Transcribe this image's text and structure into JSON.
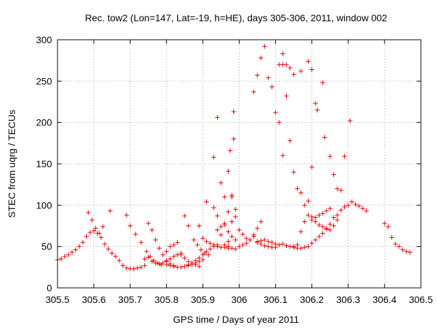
{
  "chart_data": {
    "type": "scatter",
    "title": "Rec. tow2 (Lon=147, Lat=-19, h=HE), days 305-306, 2011, window 002",
    "xlabel": "GPS time / Days of year 2011",
    "ylabel": "STEC from uqrg / TECUs",
    "xlim": [
      305.5,
      306.5
    ],
    "ylim": [
      0,
      300
    ],
    "xticks": [
      "305.5",
      "305.6",
      "305.7",
      "305.8",
      "305.9",
      "306",
      "306.1",
      "306.2",
      "306.3",
      "306.4",
      "306.5"
    ],
    "yticks": [
      "0",
      "50",
      "100",
      "150",
      "200",
      "250",
      "300"
    ],
    "grid": true,
    "marker": "+",
    "color": "#e00000",
    "points": [
      [
        305.5,
        34
      ],
      [
        305.51,
        35
      ],
      [
        305.52,
        38
      ],
      [
        305.53,
        40
      ],
      [
        305.54,
        43
      ],
      [
        305.55,
        46
      ],
      [
        305.56,
        50
      ],
      [
        305.57,
        55
      ],
      [
        305.58,
        62
      ],
      [
        305.59,
        67
      ],
      [
        305.6,
        69
      ],
      [
        305.61,
        66
      ],
      [
        305.62,
        61
      ],
      [
        305.63,
        53
      ],
      [
        305.64,
        47
      ],
      [
        305.65,
        42
      ],
      [
        305.585,
        91
      ],
      [
        305.595,
        82
      ],
      [
        305.605,
        72
      ],
      [
        305.615,
        66
      ],
      [
        305.625,
        74
      ],
      [
        305.645,
        93
      ],
      [
        305.66,
        38
      ],
      [
        305.67,
        33
      ],
      [
        305.68,
        27
      ],
      [
        305.69,
        24
      ],
      [
        305.7,
        23
      ],
      [
        305.71,
        23
      ],
      [
        305.72,
        24
      ],
      [
        305.73,
        25
      ],
      [
        305.74,
        27
      ],
      [
        305.69,
        88
      ],
      [
        305.7,
        75
      ],
      [
        305.715,
        65
      ],
      [
        305.73,
        55
      ],
      [
        305.745,
        44
      ],
      [
        305.755,
        38
      ],
      [
        305.765,
        33
      ],
      [
        305.775,
        30
      ],
      [
        305.785,
        28
      ],
      [
        305.75,
        78
      ],
      [
        305.76,
        70
      ],
      [
        305.77,
        58
      ],
      [
        305.78,
        48
      ],
      [
        305.79,
        40
      ],
      [
        305.8,
        33
      ],
      [
        305.81,
        29
      ],
      [
        305.82,
        27
      ],
      [
        305.74,
        35
      ],
      [
        305.75,
        37
      ],
      [
        305.76,
        32
      ],
      [
        305.77,
        30
      ],
      [
        305.78,
        29
      ],
      [
        305.79,
        30
      ],
      [
        305.8,
        32
      ],
      [
        305.81,
        35
      ],
      [
        305.82,
        38
      ],
      [
        305.83,
        40
      ],
      [
        305.84,
        42
      ],
      [
        305.8,
        44
      ],
      [
        305.81,
        50
      ],
      [
        305.82,
        52
      ],
      [
        305.83,
        55
      ],
      [
        305.84,
        40
      ],
      [
        305.85,
        36
      ],
      [
        305.86,
        32
      ],
      [
        305.87,
        30
      ],
      [
        305.88,
        28
      ],
      [
        305.89,
        26
      ],
      [
        305.8,
        28
      ],
      [
        305.81,
        27
      ],
      [
        305.82,
        26
      ],
      [
        305.83,
        25
      ],
      [
        305.84,
        25
      ],
      [
        305.85,
        26
      ],
      [
        305.86,
        27
      ],
      [
        305.87,
        28
      ],
      [
        305.88,
        30
      ],
      [
        305.89,
        32
      ],
      [
        305.9,
        34
      ],
      [
        305.85,
        87
      ],
      [
        305.86,
        75
      ],
      [
        305.875,
        58
      ],
      [
        305.885,
        52
      ],
      [
        305.895,
        46
      ],
      [
        305.905,
        42
      ],
      [
        305.915,
        40
      ],
      [
        305.86,
        28
      ],
      [
        305.87,
        30
      ],
      [
        305.88,
        33
      ],
      [
        305.89,
        36
      ],
      [
        305.9,
        40
      ],
      [
        305.91,
        44
      ],
      [
        305.92,
        47
      ],
      [
        305.93,
        50
      ],
      [
        305.94,
        52
      ],
      [
        305.89,
        75
      ],
      [
        305.9,
        60
      ],
      [
        305.91,
        56
      ],
      [
        305.92,
        54
      ],
      [
        305.93,
        52
      ],
      [
        305.94,
        50
      ],
      [
        305.95,
        49
      ],
      [
        305.96,
        49
      ],
      [
        305.97,
        48
      ],
      [
        305.91,
        104
      ],
      [
        305.93,
        158
      ],
      [
        305.94,
        206
      ],
      [
        305.95,
        127
      ],
      [
        305.96,
        78
      ],
      [
        305.97,
        68
      ],
      [
        305.98,
        62
      ],
      [
        305.99,
        58
      ],
      [
        305.93,
        97
      ],
      [
        305.94,
        87
      ],
      [
        305.95,
        74
      ],
      [
        305.96,
        76
      ],
      [
        305.97,
        92
      ],
      [
        305.98,
        110
      ],
      [
        305.99,
        95
      ],
      [
        305.94,
        70
      ],
      [
        305.95,
        64
      ],
      [
        305.96,
        110
      ],
      [
        305.97,
        141
      ],
      [
        305.975,
        166
      ],
      [
        305.985,
        180
      ],
      [
        305.985,
        213
      ],
      [
        305.98,
        112
      ],
      [
        305.96,
        52
      ],
      [
        305.97,
        56
      ],
      [
        305.98,
        80
      ],
      [
        305.99,
        86
      ],
      [
        305.97,
        50
      ],
      [
        305.98,
        48
      ],
      [
        305.99,
        47
      ],
      [
        306,
        70
      ],
      [
        306.01,
        65
      ],
      [
        306.02,
        60
      ],
      [
        306.03,
        58
      ],
      [
        306.04,
        64
      ],
      [
        306.05,
        72
      ],
      [
        306.06,
        80
      ],
      [
        306,
        50
      ],
      [
        306.01,
        52
      ],
      [
        306.02,
        54
      ],
      [
        306.03,
        58
      ],
      [
        306.04,
        62
      ],
      [
        306.05,
        56
      ],
      [
        306.06,
        53
      ],
      [
        306.07,
        51
      ],
      [
        306.08,
        50
      ],
      [
        306.09,
        49
      ],
      [
        306.1,
        49
      ],
      [
        306.04,
        237
      ],
      [
        306.05,
        257
      ],
      [
        306.06,
        278
      ],
      [
        306.07,
        292
      ],
      [
        306.08,
        254
      ],
      [
        306.09,
        243
      ],
      [
        306.1,
        212
      ],
      [
        306.11,
        200
      ],
      [
        306.12,
        160
      ],
      [
        306.12,
        283
      ],
      [
        306.11,
        270
      ],
      [
        306.12,
        270
      ],
      [
        306.13,
        270
      ],
      [
        306.14,
        266
      ],
      [
        306.15,
        258
      ],
      [
        306.17,
        262
      ],
      [
        306.19,
        274
      ],
      [
        306.2,
        264
      ],
      [
        306.13,
        232
      ],
      [
        306.14,
        178
      ],
      [
        306.15,
        140
      ],
      [
        306.16,
        120
      ],
      [
        306.17,
        115
      ],
      [
        306.18,
        100
      ],
      [
        306.19,
        105
      ],
      [
        306.2,
        146
      ],
      [
        306.21,
        223
      ],
      [
        306.215,
        215
      ],
      [
        306.23,
        248
      ],
      [
        306.235,
        182
      ],
      [
        306.25,
        159
      ],
      [
        306.26,
        137
      ],
      [
        306.27,
        120
      ],
      [
        306.28,
        118
      ],
      [
        306.05,
        55
      ],
      [
        306.06,
        57
      ],
      [
        306.07,
        58
      ],
      [
        306.08,
        56
      ],
      [
        306.09,
        55
      ],
      [
        306.1,
        53
      ],
      [
        306.11,
        52
      ],
      [
        306.12,
        53
      ],
      [
        306.13,
        51
      ],
      [
        306.14,
        50
      ],
      [
        306.15,
        50
      ],
      [
        306.15,
        49
      ],
      [
        306.16,
        48
      ],
      [
        306.17,
        48
      ],
      [
        306.18,
        49
      ],
      [
        306.19,
        50
      ],
      [
        306.2,
        54
      ],
      [
        306.21,
        58
      ],
      [
        306.22,
        62
      ],
      [
        306.23,
        66
      ],
      [
        306.24,
        71
      ],
      [
        306.25,
        77
      ],
      [
        306.16,
        52
      ],
      [
        306.17,
        68
      ],
      [
        306.18,
        80
      ],
      [
        306.19,
        88
      ],
      [
        306.2,
        82
      ],
      [
        306.21,
        85
      ],
      [
        306.22,
        88
      ],
      [
        306.23,
        90
      ],
      [
        306.24,
        93
      ],
      [
        306.25,
        96
      ],
      [
        306.2,
        86
      ],
      [
        306.21,
        80
      ],
      [
        306.22,
        76
      ],
      [
        306.23,
        74
      ],
      [
        306.24,
        72
      ],
      [
        306.25,
        70
      ],
      [
        306.26,
        75
      ],
      [
        306.27,
        82
      ],
      [
        306.29,
        159
      ],
      [
        306.3,
        100
      ],
      [
        306.305,
        202
      ],
      [
        306.31,
        104
      ],
      [
        306.32,
        101
      ],
      [
        306.33,
        99
      ],
      [
        306.34,
        96
      ],
      [
        306.35,
        93
      ],
      [
        306.26,
        85
      ],
      [
        306.27,
        88
      ],
      [
        306.28,
        94
      ],
      [
        306.29,
        98
      ],
      [
        306.4,
        78
      ],
      [
        306.41,
        74
      ],
      [
        306.42,
        61
      ],
      [
        306.43,
        53
      ],
      [
        306.44,
        50
      ],
      [
        306.45,
        46
      ],
      [
        306.46,
        44
      ],
      [
        306.47,
        43
      ]
    ]
  }
}
